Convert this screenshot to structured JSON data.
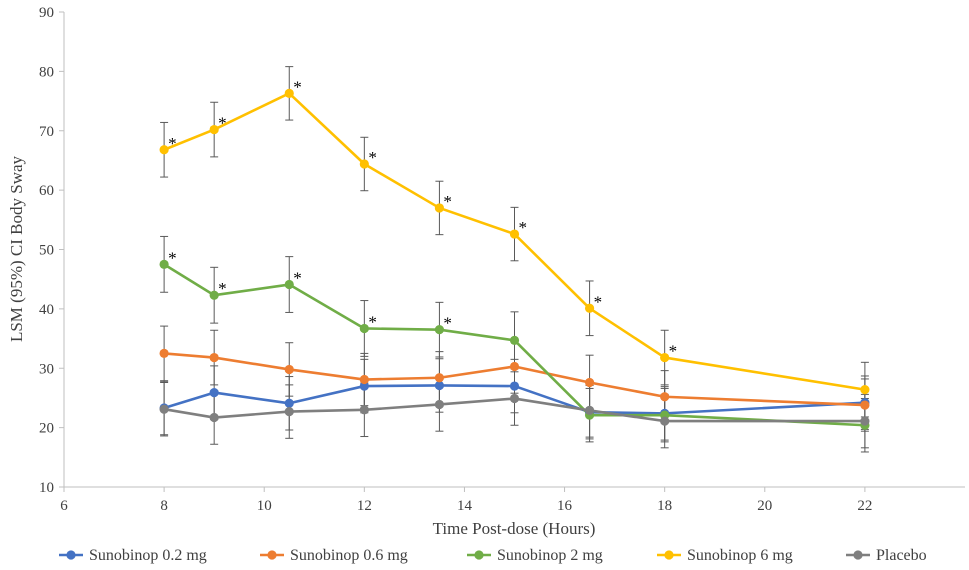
{
  "chart_data": {
    "type": "line",
    "title": "",
    "xlabel": "Time Post-dose (Hours)",
    "ylabel": "LSM (95%) CI Body Sway",
    "xlim": [
      6,
      24
    ],
    "ylim": [
      10,
      90
    ],
    "xticks": [
      6,
      8,
      10,
      12,
      14,
      16,
      18,
      20,
      22
    ],
    "yticks": [
      10,
      20,
      30,
      40,
      50,
      60,
      70,
      80,
      90
    ],
    "grid": false,
    "legend_position": "bottom",
    "significance_marker": "*",
    "x": [
      8,
      9,
      10.5,
      12,
      13.5,
      15,
      16.5,
      18,
      22
    ],
    "series": [
      {
        "name": "Sunobinop 0.2 mg",
        "color": "#4472c4",
        "values": [
          23.3,
          25.9,
          24.1,
          27.0,
          27.1,
          27.0,
          22.6,
          22.4,
          24.2
        ],
        "err": [
          4.5,
          4.5,
          4.5,
          4.5,
          4.5,
          4.5,
          4.5,
          4.5,
          4.5
        ],
        "significant": [
          false,
          false,
          false,
          false,
          false,
          false,
          false,
          false,
          false
        ]
      },
      {
        "name": "Sunobinop 0.6 mg",
        "color": "#ed7d31",
        "values": [
          32.5,
          31.8,
          29.8,
          28.1,
          28.4,
          30.3,
          27.6,
          25.2,
          23.8
        ],
        "err": [
          4.6,
          4.6,
          4.5,
          4.4,
          4.4,
          4.5,
          4.6,
          4.4,
          4.4
        ],
        "significant": [
          false,
          false,
          false,
          false,
          false,
          false,
          false,
          false,
          false
        ]
      },
      {
        "name": "Sunobinop 2 mg",
        "color": "#70ad47",
        "values": [
          47.5,
          42.3,
          44.1,
          36.7,
          36.5,
          34.7,
          22.1,
          22.1,
          20.4
        ],
        "err": [
          4.7,
          4.7,
          4.7,
          4.7,
          4.6,
          4.8,
          4.5,
          4.5,
          4.5
        ],
        "significant": [
          true,
          true,
          true,
          true,
          true,
          false,
          false,
          false,
          false
        ]
      },
      {
        "name": "Sunobinop 6 mg",
        "color": "#ffc000",
        "values": [
          66.8,
          70.2,
          76.3,
          64.4,
          57.0,
          52.6,
          40.1,
          31.8,
          26.4
        ],
        "err": [
          4.6,
          4.6,
          4.5,
          4.5,
          4.5,
          4.5,
          4.6,
          4.6,
          4.6
        ],
        "significant": [
          true,
          true,
          true,
          true,
          true,
          true,
          true,
          true,
          false
        ]
      },
      {
        "name": "Placebo",
        "color": "#7f7f7f",
        "values": [
          23.1,
          21.7,
          22.7,
          23.0,
          23.9,
          24.9,
          22.9,
          21.1,
          21.1
        ],
        "err": [
          4.5,
          4.5,
          4.5,
          4.5,
          4.5,
          4.5,
          4.5,
          4.5,
          4.5
        ],
        "significant": [
          false,
          false,
          false,
          false,
          false,
          false,
          false,
          false,
          false
        ]
      }
    ]
  }
}
